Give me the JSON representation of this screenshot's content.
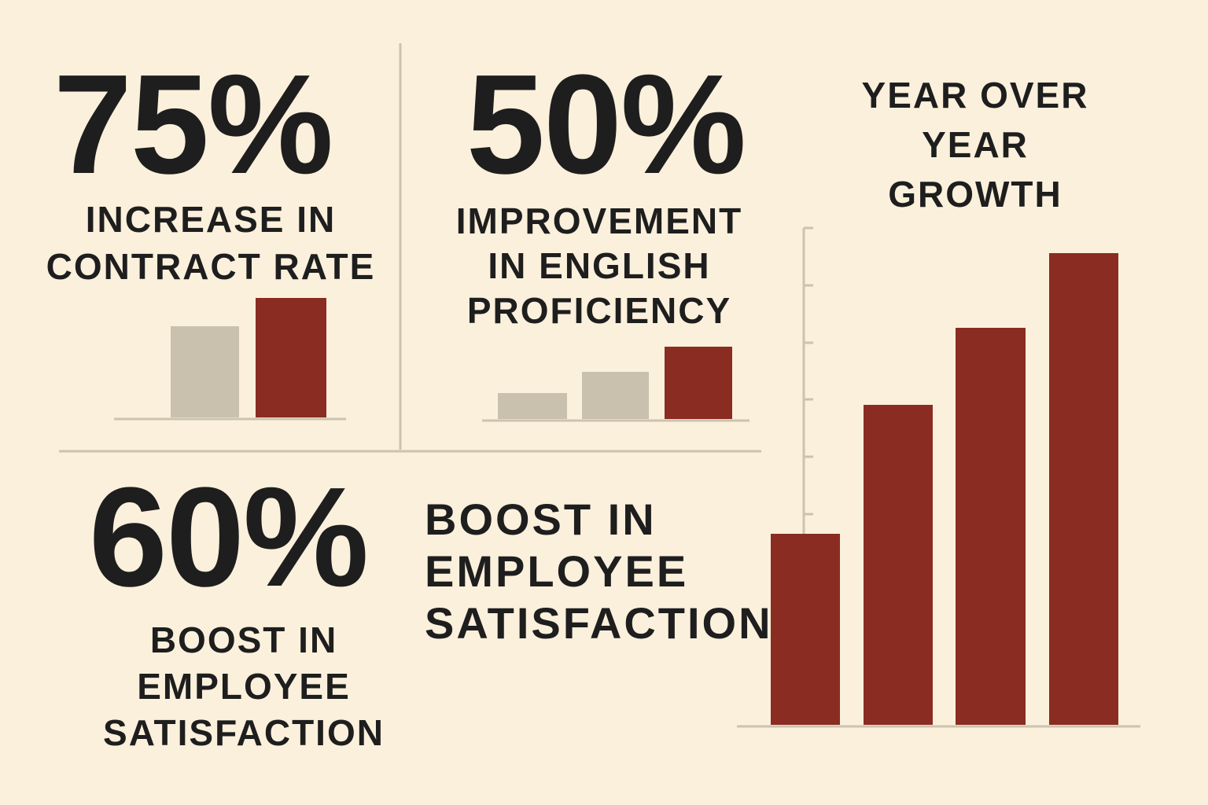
{
  "chart_data": [
    {
      "type": "bar",
      "title": "75%",
      "subtitle": [
        "INCREASE IN",
        "CONTRACT RATE"
      ],
      "categories": [
        null,
        null
      ],
      "values": [
        116,
        152
      ],
      "colors": [
        "#c9c1ad",
        "#8a2c21"
      ],
      "ylim": [
        0,
        160
      ]
    },
    {
      "type": "bar",
      "title": "50%",
      "subtitle": [
        "IMPROVEMENT",
        "IN ENGLISH",
        "PROFICIENCY"
      ],
      "categories": [
        null,
        null,
        null
      ],
      "values": [
        33,
        60,
        92
      ],
      "colors": [
        "#c9c1ad",
        "#c9c1ad",
        "#8a2c21"
      ],
      "ylim": [
        0,
        160
      ]
    },
    {
      "type": "bar",
      "title": [
        "YEAR OVER",
        "YEAR",
        "GROWTH"
      ],
      "categories": [
        null,
        null,
        null,
        null
      ],
      "values": [
        243,
        407,
        505,
        600
      ],
      "colors": [
        "#8a2c21",
        "#8a2c21",
        "#8a2c21",
        "#8a2c21"
      ],
      "ylim": [
        0,
        632
      ],
      "yticks": [
        268,
        341,
        414,
        486,
        559,
        632
      ]
    }
  ],
  "stats": [
    {
      "value": "60%",
      "label": [
        "BOOST IN",
        "EMPLOYEE",
        "SATISFACTION"
      ]
    }
  ],
  "caption": [
    "BOOST IN",
    "EMPLOYEE",
    "SATISFACTION"
  ]
}
